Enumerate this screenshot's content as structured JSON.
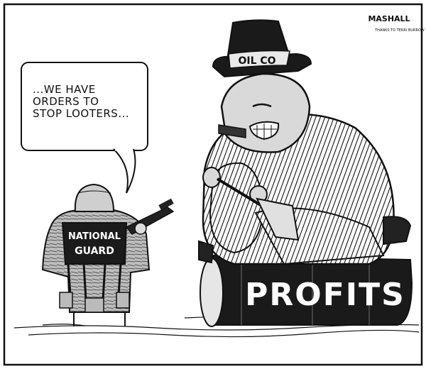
{
  "speech": {
    "line1": "...WE HAVE",
    "line2": "ORDERS TO",
    "line3": "STOP LOOTERS..."
  },
  "labels": {
    "hat_band": "OIL CO",
    "vest": "NATIONAL GUARD",
    "barrel": "PROFITS"
  },
  "signature": {
    "name": "MASHALL",
    "note": "THANKS TO TERRI BURROW"
  },
  "colors": {
    "ink": "#111111",
    "paper": "#ffffff",
    "wash": "#d9d9d9"
  }
}
